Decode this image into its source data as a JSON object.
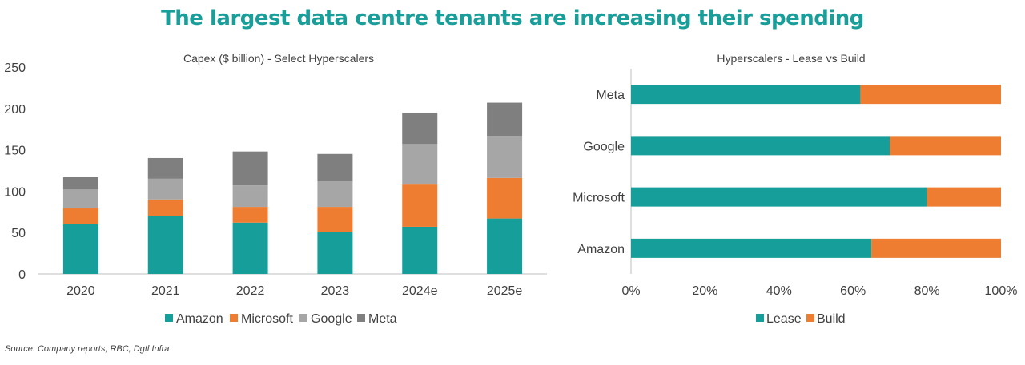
{
  "page_title": "The largest data centre tenants are increasing their spending",
  "source": "Source: Company reports, RBC, Dgtl Infra",
  "colors": {
    "Amazon": "#169e9a",
    "Microsoft": "#ee7d31",
    "Google": "#a6a6a6",
    "Meta": "#7f7f7f",
    "Lease": "#169e9a",
    "Build": "#ee7d31",
    "title": "#1a9e9a"
  },
  "chart_data": [
    {
      "type": "bar",
      "stacked": true,
      "title": "Capex ($ billion) - Select Hyperscalers",
      "categories": [
        "2020",
        "2021",
        "2022",
        "2023",
        "2024e",
        "2025e"
      ],
      "series": [
        {
          "name": "Amazon",
          "values": [
            60,
            70,
            62,
            51,
            57,
            67
          ]
        },
        {
          "name": "Microsoft",
          "values": [
            20,
            20,
            19,
            30,
            51,
            49
          ]
        },
        {
          "name": "Google",
          "values": [
            22,
            25,
            26,
            31,
            49,
            51
          ]
        },
        {
          "name": "Meta",
          "values": [
            15,
            25,
            41,
            33,
            38,
            40
          ]
        }
      ],
      "ylim": [
        0,
        250
      ],
      "yticks": [
        "0",
        "50",
        "100",
        "150",
        "200",
        "250"
      ],
      "legend": "bottom",
      "grid": false
    },
    {
      "type": "bar",
      "orientation": "horizontal",
      "stacked_percent": true,
      "title": "Hyperscalers - Lease vs Build",
      "categories": [
        "Meta",
        "Google",
        "Microsoft",
        "Amazon"
      ],
      "series": [
        {
          "name": "Lease",
          "values": [
            62,
            70,
            80,
            65
          ]
        },
        {
          "name": "Build",
          "values": [
            38,
            30,
            20,
            35
          ]
        }
      ],
      "xlim": [
        0,
        100
      ],
      "xticks": [
        "0%",
        "20%",
        "40%",
        "60%",
        "80%",
        "100%"
      ],
      "legend": "bottom",
      "grid": false
    }
  ]
}
